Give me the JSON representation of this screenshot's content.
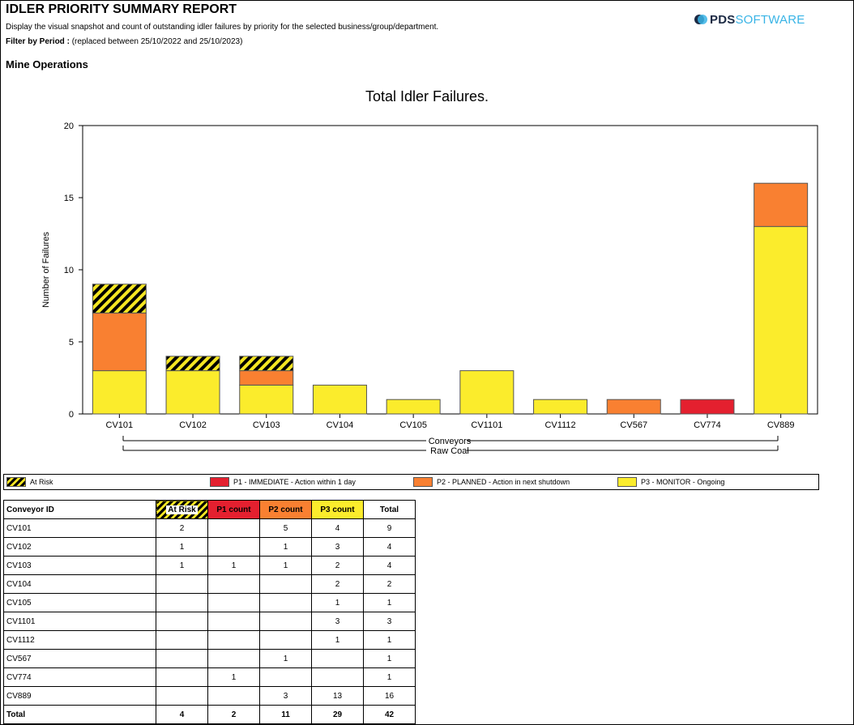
{
  "header": {
    "title": "IDLER PRIORITY SUMMARY REPORT",
    "description": "Display the visual snapshot and count of outstanding idler failures by priority for the selected business/group/department.",
    "filter_label": "Filter by Period :",
    "filter_value": "(replaced between 25/10/2022 and 25/10/2023)",
    "section": "Mine Operations",
    "logo_pds": "PDS",
    "logo_software": "SOFTWARE"
  },
  "colors": {
    "p1": "#e4202f",
    "p2": "#f98031",
    "p3": "#fbec2c",
    "at_risk_stripe": "#000000"
  },
  "chart_data": {
    "type": "bar",
    "stacked": true,
    "title": "Total Idler Failures.",
    "ylabel": "Number of Failures",
    "ylim": [
      0,
      20
    ],
    "yticks": [
      0,
      5,
      10,
      15,
      20
    ],
    "categories": [
      "CV101",
      "CV102",
      "CV103",
      "CV104",
      "CV105",
      "CV1101",
      "CV1112",
      "CV567",
      "CV774",
      "CV889"
    ],
    "group_labels": [
      "Conveyors",
      "Raw Coal"
    ],
    "series": [
      {
        "name": "P3 - MONITOR - Ongoing",
        "key": "p3",
        "values": [
          3,
          3,
          2,
          2,
          1,
          3,
          1,
          0,
          0,
          13
        ]
      },
      {
        "name": "P2 - PLANNED - Action in next shutdown",
        "key": "p2",
        "values": [
          4,
          0,
          1,
          0,
          0,
          0,
          0,
          1,
          0,
          3
        ]
      },
      {
        "name": "P1 - IMMEDIATE - Action within 1 day",
        "key": "p1",
        "values": [
          0,
          0,
          0,
          0,
          0,
          0,
          0,
          0,
          1,
          0
        ]
      },
      {
        "name": "At Risk",
        "key": "risk",
        "values": [
          2,
          1,
          1,
          0,
          0,
          0,
          0,
          0,
          0,
          0
        ]
      }
    ]
  },
  "legend": [
    {
      "label": "At Risk",
      "key": "risk"
    },
    {
      "label": "P1 - IMMEDIATE - Action within 1 day",
      "key": "p1"
    },
    {
      "label": "P2 - PLANNED - Action in next shutdown",
      "key": "p2"
    },
    {
      "label": "P3 - MONITOR - Ongoing",
      "key": "p3"
    }
  ],
  "table": {
    "headers": [
      "Conveyor ID",
      "At Risk",
      "P1 count",
      "P2 count",
      "P3 count",
      "Total"
    ],
    "rows": [
      [
        "CV101",
        "2",
        "",
        "5",
        "4",
        "9"
      ],
      [
        "CV102",
        "1",
        "",
        "1",
        "3",
        "4"
      ],
      [
        "CV103",
        "1",
        "1",
        "1",
        "2",
        "4"
      ],
      [
        "CV104",
        "",
        "",
        "",
        "2",
        "2"
      ],
      [
        "CV105",
        "",
        "",
        "",
        "1",
        "1"
      ],
      [
        "CV1101",
        "",
        "",
        "",
        "3",
        "3"
      ],
      [
        "CV1112",
        "",
        "",
        "",
        "1",
        "1"
      ],
      [
        "CV567",
        "",
        "",
        "1",
        "",
        "1"
      ],
      [
        "CV774",
        "",
        "1",
        "",
        "",
        "1"
      ],
      [
        "CV889",
        "",
        "",
        "3",
        "13",
        "16"
      ]
    ],
    "total": [
      "Total",
      "4",
      "2",
      "11",
      "29",
      "42"
    ]
  }
}
